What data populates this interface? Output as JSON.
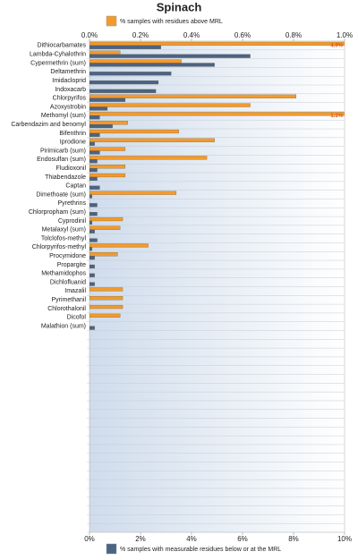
{
  "chart_data": {
    "type": "hbar",
    "title": "Spinach",
    "categories": [
      "Dithiocarbamates",
      "Lambda-Cyhalothrin",
      "Cypermethrin (sum)",
      "Deltamethrin",
      "Imidacloprid",
      "Indoxacarb",
      "Chlorpyrifos",
      "Azoxystrobin",
      "Methomyl (sum)",
      "Carbendazim and benomyl",
      "Bifenthrin",
      "Iprodione",
      "Pirimicarb (sum)",
      "Endosulfan (sum)",
      "Fludioxonil",
      "Thiabendazole",
      "Captan",
      "Dimethoate (sum)",
      "Pyrethrins",
      "Chlorpropham (sum)",
      "Cyprodinil",
      "Metalaxyl (sum)",
      "Tolclofos-methyl",
      "Chlorpyrifos-methyl",
      "Procymidone",
      "Propargite",
      "Methamidophos",
      "Dichlofluanid",
      "Imazalil",
      "Pyrimethanil",
      "Chlorothalonil",
      "Dicofol",
      "Malathion (sum)",
      null,
      null,
      null,
      null,
      null,
      null,
      null,
      null,
      null,
      null,
      null,
      null,
      null,
      null,
      null,
      null,
      null,
      null,
      null,
      null,
      null,
      null,
      null
    ],
    "series": [
      {
        "name": "% samples with residues above MRL",
        "color": "#f39a2b",
        "axis": "x2",
        "values": [
          4.9,
          0.12,
          0.36,
          null,
          null,
          null,
          0.81,
          0.63,
          1.1,
          0.15,
          0.35,
          0.49,
          0.14,
          0.46,
          0.14,
          0.14,
          null,
          0.34,
          null,
          null,
          0.13,
          0.12,
          null,
          0.23,
          0.11,
          null,
          null,
          null,
          0.13,
          0.13,
          0.13,
          0.12,
          null,
          null,
          null,
          null,
          null,
          null,
          null,
          null,
          null,
          null,
          null,
          null,
          null,
          null,
          null,
          null,
          null,
          null,
          null,
          null,
          null,
          null,
          null,
          null
        ],
        "value_labels": [
          "4.9%",
          null,
          null,
          null,
          null,
          null,
          null,
          null,
          "1.1%",
          null,
          null,
          null,
          null,
          null,
          null,
          null,
          null,
          null,
          null,
          null,
          null,
          null,
          null,
          null,
          null,
          null,
          null,
          null,
          null,
          null,
          null,
          null,
          null,
          null,
          null,
          null,
          null,
          null,
          null,
          null,
          null,
          null,
          null,
          null,
          null,
          null,
          null,
          null,
          null,
          null,
          null,
          null,
          null,
          null,
          null,
          null
        ]
      },
      {
        "name": "% samples with measurable residues below or at the MRL",
        "color": "#4b6384",
        "values": [
          2.8,
          6.3,
          4.9,
          3.2,
          2.7,
          2.6,
          1.4,
          0.7,
          0.4,
          0.9,
          0.4,
          0.2,
          0.4,
          0.3,
          0.3,
          0.3,
          0.4,
          0.1,
          0.3,
          0.3,
          0.1,
          0.2,
          0.3,
          0.1,
          0.2,
          0.2,
          0.2,
          0.2,
          null,
          null,
          null,
          null,
          0.2,
          null,
          null,
          null,
          null,
          null,
          null,
          null,
          null,
          null,
          null,
          null,
          null,
          null,
          null,
          null,
          null,
          null,
          null,
          null,
          null,
          null,
          null,
          null
        ]
      }
    ],
    "xlim": [
      0,
      10
    ],
    "xticks": [
      {
        "value": 0,
        "label": "0%"
      },
      {
        "value": 2,
        "label": "2%"
      },
      {
        "value": 4,
        "label": "4%"
      },
      {
        "value": 6,
        "label": "6%"
      },
      {
        "value": 8,
        "label": "8%"
      },
      {
        "value": 10,
        "label": "10%"
      }
    ],
    "x2lim": [
      0,
      1.0
    ],
    "x2ticks": [
      {
        "value": 0,
        "label": "0.0%"
      },
      {
        "value": 0.2,
        "label": "0.2%"
      },
      {
        "value": 0.4,
        "label": "0.4%"
      },
      {
        "value": 0.6,
        "label": "0.6%"
      },
      {
        "value": 0.8,
        "label": "0.8%"
      },
      {
        "value": 1.0,
        "label": "1.0%"
      }
    ],
    "grid": true
  }
}
